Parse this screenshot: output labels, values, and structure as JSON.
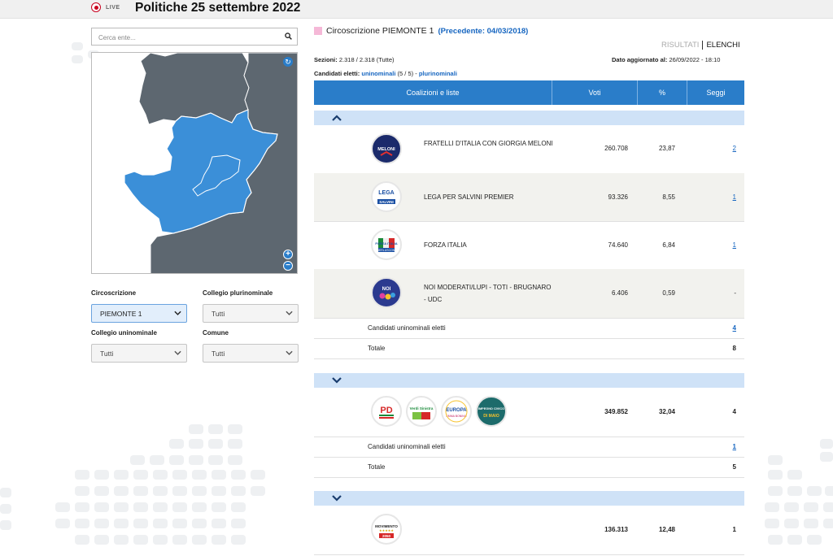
{
  "header": {
    "live_label": "LIVE",
    "title": "Politiche 25 settembre 2022"
  },
  "search": {
    "placeholder": "Cerca ente..."
  },
  "filters": {
    "circoscrizione": {
      "label": "Circoscrizione",
      "value": "PIEMONTE 1"
    },
    "plurinominale": {
      "label": "Collegio plurinominale",
      "value": "Tutti"
    },
    "uninominale": {
      "label": "Collegio uninominale",
      "value": "Tutti"
    },
    "comune": {
      "label": "Comune",
      "value": "Tutti"
    }
  },
  "main": {
    "title": "Circoscrizione PIEMONTE 1",
    "previous": "(Precedente: 04/03/2018)",
    "tab_results": "RISULTATI",
    "tab_lists": "ELENCHI",
    "sections_label": "Sezioni:",
    "sections_value": "2.318 / 2.318 (Tutte)",
    "updated_label": "Dato aggiornato al:",
    "updated_value": "26/09/2022 - 18:10",
    "elected_label": "Candidati eletti:",
    "elected_uninominali": "uninominali",
    "elected_count": "(5 / 5) -",
    "elected_plurinominali": "plurinominali"
  },
  "table": {
    "headers": {
      "coalitions": "Coalizioni e liste",
      "votes": "Voti",
      "pct": "%",
      "seats": "Seggi"
    },
    "group1": {
      "lists": [
        {
          "name": "FRATELLI D'ITALIA CON GIORGIA MELONI",
          "votes": "260.708",
          "pct": "23,87",
          "seats": "2",
          "logo": "fdi-logo"
        },
        {
          "name": "LEGA PER SALVINI PREMIER",
          "votes": "93.326",
          "pct": "8,55",
          "seats": "1",
          "logo": "lega-logo"
        },
        {
          "name": "FORZA ITALIA",
          "votes": "74.640",
          "pct": "6,84",
          "seats": "1",
          "logo": "forza-italia-logo"
        },
        {
          "name": "NOI MODERATI/LUPI - TOTI - BRUGNARO - UDC",
          "votes": "6.406",
          "pct": "0,59",
          "seats": "-",
          "logo": "noi-moderati-logo"
        }
      ],
      "elected_label": "Candidati uninominali eletti",
      "elected_value": "4",
      "total_label": "Totale",
      "total_value": "8"
    },
    "group2": {
      "votes": "349.852",
      "pct": "32,04",
      "seats": "4",
      "elected_label": "Candidati uninominali eletti",
      "elected_value": "1",
      "total_label": "Totale",
      "total_value": "5"
    },
    "group3": {
      "votes": "136.313",
      "pct": "12,48",
      "seats": "1"
    }
  },
  "logo_text": {
    "fdi": "MELONI",
    "lega": "LEGA",
    "lega_sub": "SALVINI",
    "fi": "FORZA ITALIA",
    "fi_sub": "BERLUSCONI",
    "noi": "NOI",
    "pd": "PD",
    "avs": "Verdi Sinistra",
    "europa": "EUROPA",
    "europa_sub": "EMMA BONINO",
    "ic": "IMPEGNO CIVICO",
    "ic_sub": "DI MAIO",
    "m5s": "MOVIMENTO",
    "m5s_sub": "2050"
  },
  "colors": {
    "accent": "#2a7dc9",
    "map_region": "#3b8fd8",
    "map_other": "#5d6770",
    "group_bar": "#cfe2f7"
  }
}
